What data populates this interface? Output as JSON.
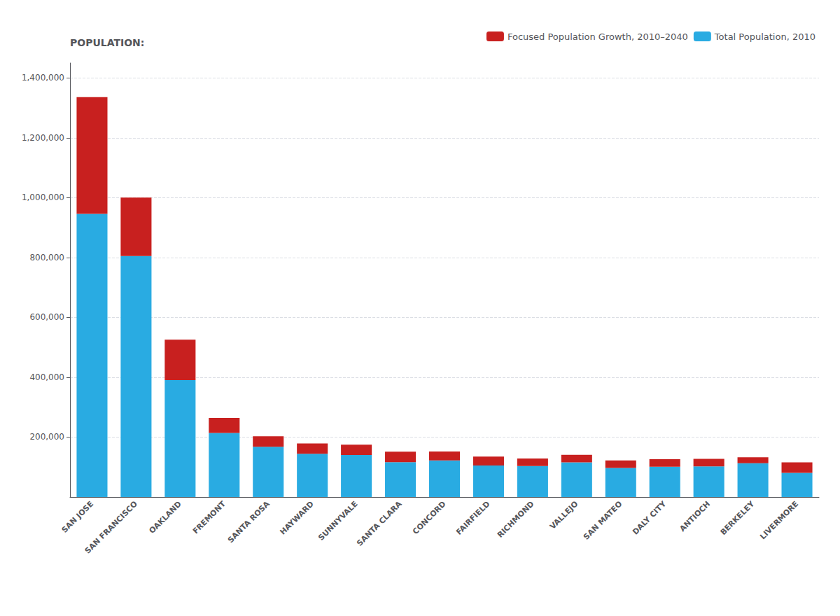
{
  "chart_data": {
    "type": "bar",
    "ylabel": "POPULATION:",
    "categories": [
      "SAN JOSE",
      "SAN FRANCISCO",
      "OAKLAND",
      "FREMONT",
      "SANTA ROSA",
      "HAYWARD",
      "SUNNYVALE",
      "SANTA CLARA",
      "CONCORD",
      "FAIRFIELD",
      "RICHMOND",
      "VALLEJO",
      "SAN MATEO",
      "DALY CITY",
      "ANTIOCH",
      "BERKELEY",
      "LIVERMORE"
    ],
    "series": [
      {
        "name": "Total Population, 2010",
        "color": "#29ABE2",
        "values": [
          945942,
          805235,
          390724,
          214089,
          167815,
          144186,
          140081,
          116468,
          122067,
          105321,
          103701,
          115942,
          97207,
          101123,
          102372,
          112580,
          80968
        ]
      },
      {
        "name": "Focused Population Growth, 2010–2040",
        "color": "#C8201F",
        "values": [
          390000,
          195000,
          135000,
          50000,
          35000,
          35000,
          35000,
          35000,
          30000,
          30000,
          25000,
          25000,
          25000,
          25000,
          25000,
          20000,
          35000
        ]
      }
    ],
    "stacked": true,
    "ylim": [
      0,
      1450000
    ],
    "yticks": [
      {
        "value": 200000,
        "label": "200,000"
      },
      {
        "value": 400000,
        "label": "400,000"
      },
      {
        "value": 600000,
        "label": "600,000"
      },
      {
        "value": 800000,
        "label": "800,000"
      },
      {
        "value": 1000000,
        "label": "1,000,000"
      },
      {
        "value": 1200000,
        "label": "1,200,000"
      },
      {
        "value": 1400000,
        "label": "1,400,000"
      }
    ],
    "grid": true,
    "legend": "upper right"
  }
}
